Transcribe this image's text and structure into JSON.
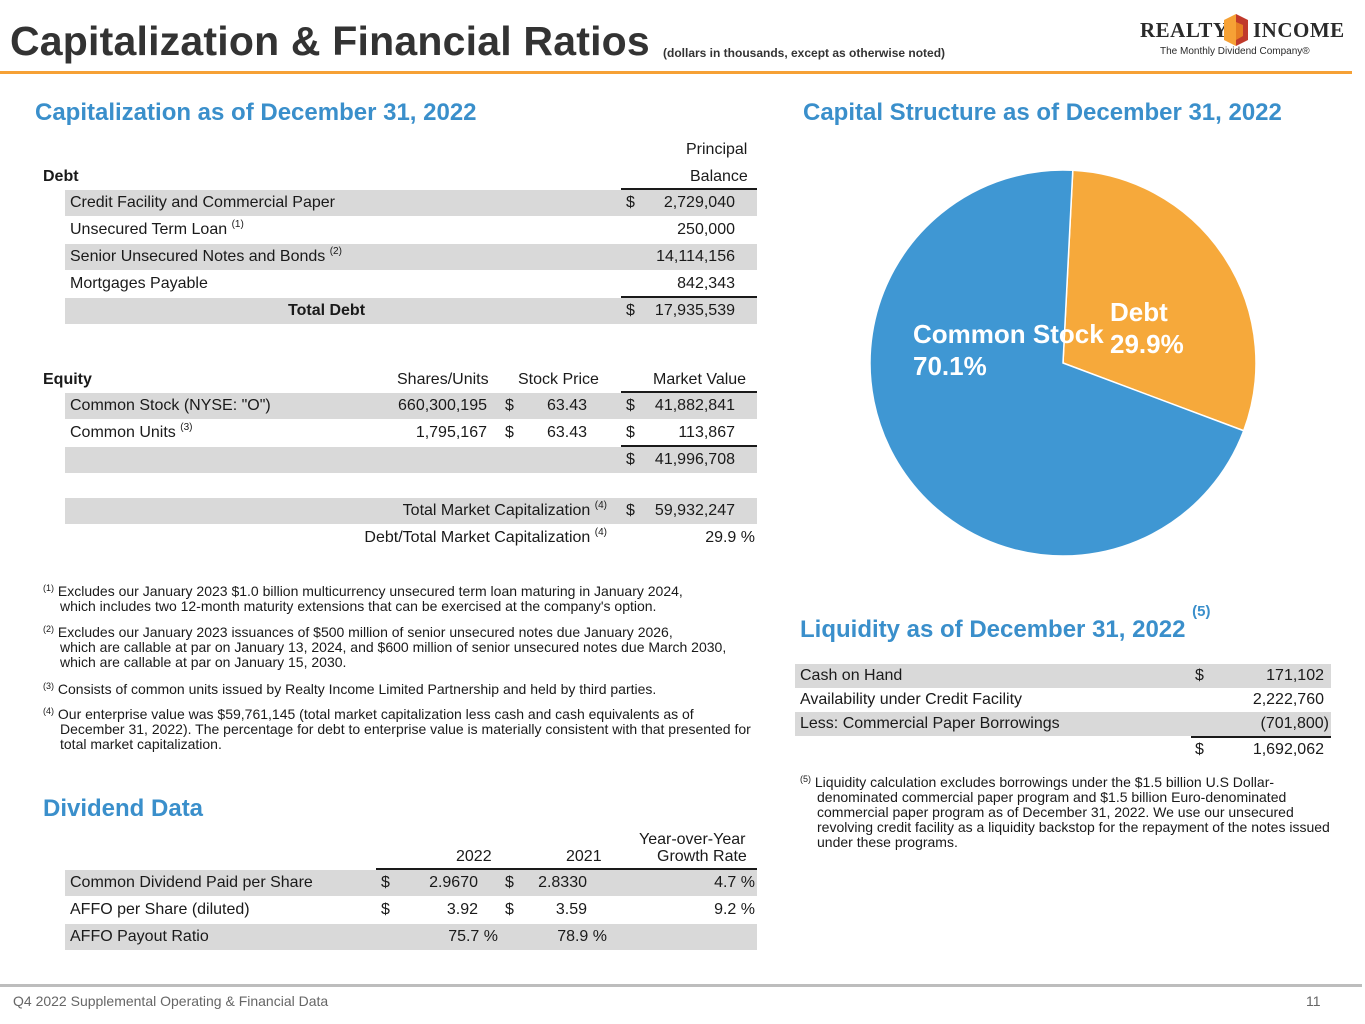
{
  "header": {
    "title": "Capitalization & Financial Ratios",
    "subtitle": "(dollars in thousands, except as otherwise noted)",
    "logo_left": "REALTY",
    "logo_right": "INCOME",
    "logo_tagline": "The Monthly Dividend Company®"
  },
  "capitalization": {
    "heading": "Capitalization as of December 31, 2022",
    "debt_label": "Debt",
    "col_principal": "Principal",
    "col_balance": "Balance",
    "debt_rows": [
      {
        "label": "Credit Facility and Commercial Paper",
        "sup": "",
        "dollar": "$",
        "value": "2,729,040"
      },
      {
        "label": "Unsecured Term Loan",
        "sup": "(1)",
        "dollar": "",
        "value": "250,000"
      },
      {
        "label": "Senior Unsecured Notes and Bonds",
        "sup": "(2)",
        "dollar": "",
        "value": "14,114,156"
      },
      {
        "label": "Mortgages Payable",
        "sup": "",
        "dollar": "",
        "value": "842,343"
      }
    ],
    "total_debt_label": "Total Debt",
    "total_debt_dollar": "$",
    "total_debt_value": "17,935,539",
    "equity_label": "Equity",
    "col_shares": "Shares/Units",
    "col_price": "Stock Price",
    "col_market": "Market Value",
    "equity_rows": [
      {
        "label": "Common Stock (NYSE: \"O\")",
        "sup": "",
        "shares": "660,300,195",
        "price_dollar": "$",
        "price": "63.43",
        "mv_dollar": "$",
        "mv": "41,882,841"
      },
      {
        "label": "Common Units",
        "sup": "(3)",
        "shares": "1,795,167",
        "price_dollar": "$",
        "price": "63.43",
        "mv_dollar": "$",
        "mv": "113,867"
      }
    ],
    "equity_total_dollar": "$",
    "equity_total": "41,996,708",
    "tmc_label": "Total Market Capitalization",
    "tmc_sup": "(4)",
    "tmc_dollar": "$",
    "tmc_value": "59,932,247",
    "ratio_label": "Debt/Total Market Capitalization",
    "ratio_sup": "(4)",
    "ratio_value": "29.9 %"
  },
  "footnotes": [
    {
      "mark": "(1)",
      "line1": "Excludes our January 2023 $1.0 billion multicurrency unsecured term loan maturing in January 2024,",
      "rest": "which includes two 12-month maturity extensions that can be exercised at the company's option."
    },
    {
      "mark": "(2)",
      "line1": "Excludes our January 2023 issuances of $500 million of senior unsecured notes due January 2026,",
      "rest": "which are callable at par on January 13, 2024, and $600 million of senior unsecured notes due March 2030, which are callable at par on January 15, 2030."
    },
    {
      "mark": "(3)",
      "line1": "Consists of common units issued by Realty Income Limited Partnership and held by third parties.",
      "rest": ""
    },
    {
      "mark": "(4)",
      "line1": "Our enterprise value was $59,761,145 (total market capitalization less cash and cash equivalents as of",
      "rest": "December 31, 2022). The percentage for debt to enterprise value is materially consistent with that presented for total market capitalization."
    }
  ],
  "dividend": {
    "heading": "Dividend Data",
    "col_2022": "2022",
    "col_2021": "2021",
    "col_yoy_1": "Year-over-Year",
    "col_yoy_2": "Growth Rate",
    "rows": [
      {
        "label": "Common Dividend Paid per Share",
        "d1": "$",
        "v2022": "2.9670",
        "d2": "$",
        "v2021": "2.8330",
        "growth": "4.7 %"
      },
      {
        "label": "AFFO per Share (diluted)",
        "d1": "$",
        "v2022": "3.92",
        "d2": "$",
        "v2021": "3.59",
        "growth": "9.2 %"
      },
      {
        "label": "AFFO Payout Ratio",
        "d1": "",
        "v2022": "75.7 %",
        "d2": "",
        "v2021": "78.9 %",
        "growth": ""
      }
    ]
  },
  "capital_structure": {
    "heading": "Capital Structure as of December 31, 2022"
  },
  "chart_data": {
    "type": "pie",
    "title": "Capital Structure as of December 31, 2022",
    "slices": [
      {
        "label": "Debt",
        "value": 29.9,
        "display": "29.9%",
        "color": "#f6a93b"
      },
      {
        "label": "Common Stock",
        "value": 70.1,
        "display": "70.1%",
        "color": "#3f97d3"
      }
    ]
  },
  "liquidity": {
    "heading": "Liquidity as of December 31, 2022",
    "heading_sup": "(5)",
    "rows": [
      {
        "label": "Cash on Hand",
        "dollar": "$",
        "value": "171,102"
      },
      {
        "label": "Availability under Credit Facility",
        "dollar": "",
        "value": "2,222,760"
      },
      {
        "label": "Less: Commercial Paper Borrowings",
        "dollar": "",
        "value": "(701,800)"
      }
    ],
    "total_dollar": "$",
    "total_value": "1,692,062",
    "footnote_mark": "(5)",
    "footnote_line1": "Liquidity calculation excludes borrowings under the $1.5 billion U.S Dollar-",
    "footnote_rest": "denominated commercial paper program and $1.5 billion Euro-denominated commercial paper program as of December 31, 2022. We use our unsecured revolving credit facility as a liquidity backstop for the repayment of the notes issued under these programs."
  },
  "footer": {
    "left": "Q4 2022 Supplemental Operating & Financial Data",
    "page": "11"
  },
  "colors": {
    "accent": "#f6a135",
    "heading_blue": "#3a8fcb",
    "shade": "#d9d9d9"
  }
}
